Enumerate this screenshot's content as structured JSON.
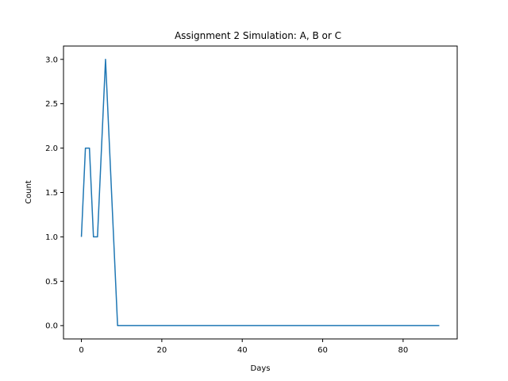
{
  "chart_data": {
    "type": "line",
    "title": "Assignment 2 Simulation: A, B or C",
    "xlabel": "Days",
    "ylabel": "Count",
    "xlim": [
      -4.45,
      93.45
    ],
    "ylim": [
      -0.15,
      3.15
    ],
    "xticks": [
      0,
      20,
      40,
      60,
      80
    ],
    "yticks": [
      0.0,
      0.5,
      1.0,
      1.5,
      2.0,
      2.5,
      3.0
    ],
    "ytick_labels": [
      "0.0",
      "0.5",
      "1.0",
      "1.5",
      "2.0",
      "2.5",
      "3.0"
    ],
    "grid": false,
    "legend": false,
    "series": [
      {
        "color": "#1f77b4",
        "x": [
          0,
          1,
          2,
          3,
          4,
          5,
          6,
          7,
          8,
          9,
          10,
          11,
          12,
          13,
          14,
          15,
          16,
          17,
          18,
          19,
          20,
          21,
          22,
          23,
          24,
          25,
          26,
          27,
          28,
          29,
          30,
          31,
          32,
          33,
          34,
          35,
          36,
          37,
          38,
          39,
          40,
          41,
          42,
          43,
          44,
          45,
          46,
          47,
          48,
          49,
          50,
          51,
          52,
          53,
          54,
          55,
          56,
          57,
          58,
          59,
          60,
          61,
          62,
          63,
          64,
          65,
          66,
          67,
          68,
          69,
          70,
          71,
          72,
          73,
          74,
          75,
          76,
          77,
          78,
          79,
          80,
          81,
          82,
          83,
          84,
          85,
          86,
          87,
          88,
          89
        ],
        "y": [
          1,
          2,
          2,
          1,
          1,
          2,
          3,
          2,
          1,
          0,
          0,
          0,
          0,
          0,
          0,
          0,
          0,
          0,
          0,
          0,
          0,
          0,
          0,
          0,
          0,
          0,
          0,
          0,
          0,
          0,
          0,
          0,
          0,
          0,
          0,
          0,
          0,
          0,
          0,
          0,
          0,
          0,
          0,
          0,
          0,
          0,
          0,
          0,
          0,
          0,
          0,
          0,
          0,
          0,
          0,
          0,
          0,
          0,
          0,
          0,
          0,
          0,
          0,
          0,
          0,
          0,
          0,
          0,
          0,
          0,
          0,
          0,
          0,
          0,
          0,
          0,
          0,
          0,
          0,
          0,
          0,
          0,
          0,
          0,
          0,
          0,
          0,
          0,
          0,
          0
        ]
      }
    ]
  }
}
